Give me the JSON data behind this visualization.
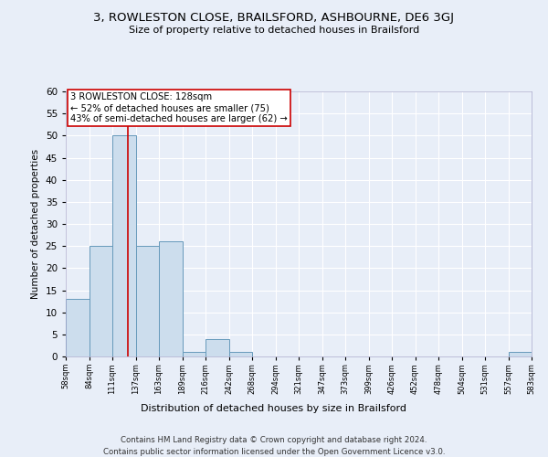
{
  "title": "3, ROWLESTON CLOSE, BRAILSFORD, ASHBOURNE, DE6 3GJ",
  "subtitle": "Size of property relative to detached houses in Brailsford",
  "xlabel": "Distribution of detached houses by size in Brailsford",
  "ylabel": "Number of detached properties",
  "bar_color": "#ccdded",
  "bar_edge_color": "#6699bb",
  "bins": [
    "58sqm",
    "84sqm",
    "111sqm",
    "137sqm",
    "163sqm",
    "189sqm",
    "216sqm",
    "242sqm",
    "268sqm",
    "294sqm",
    "321sqm",
    "347sqm",
    "373sqm",
    "399sqm",
    "426sqm",
    "452sqm",
    "478sqm",
    "504sqm",
    "531sqm",
    "557sqm",
    "583sqm"
  ],
  "values": [
    13,
    25,
    50,
    25,
    26,
    1,
    4,
    1,
    0,
    0,
    0,
    0,
    0,
    0,
    0,
    0,
    0,
    0,
    0,
    1
  ],
  "ylim": [
    0,
    60
  ],
  "yticks": [
    0,
    5,
    10,
    15,
    20,
    25,
    30,
    35,
    40,
    45,
    50,
    55,
    60
  ],
  "property_line_label": "3 ROWLESTON CLOSE: 128sqm",
  "annotation_line1": "← 52% of detached houses are smaller (75)",
  "annotation_line2": "43% of semi-detached houses are larger (62) →",
  "annotation_box_color": "#ffffff",
  "annotation_box_edge_color": "#cc0000",
  "vline_color": "#cc0000",
  "footer1": "Contains HM Land Registry data © Crown copyright and database right 2024.",
  "footer2": "Contains public sector information licensed under the Open Government Licence v3.0.",
  "bg_color": "#e8eef8",
  "plot_bg_color": "#e8eef8",
  "grid_color": "#ffffff",
  "property_sqm": 128,
  "bin_starts": [
    58,
    84,
    111,
    137,
    163,
    189,
    216,
    242,
    268,
    294,
    321,
    347,
    373,
    399,
    426,
    452,
    478,
    504,
    531,
    557,
    583
  ]
}
